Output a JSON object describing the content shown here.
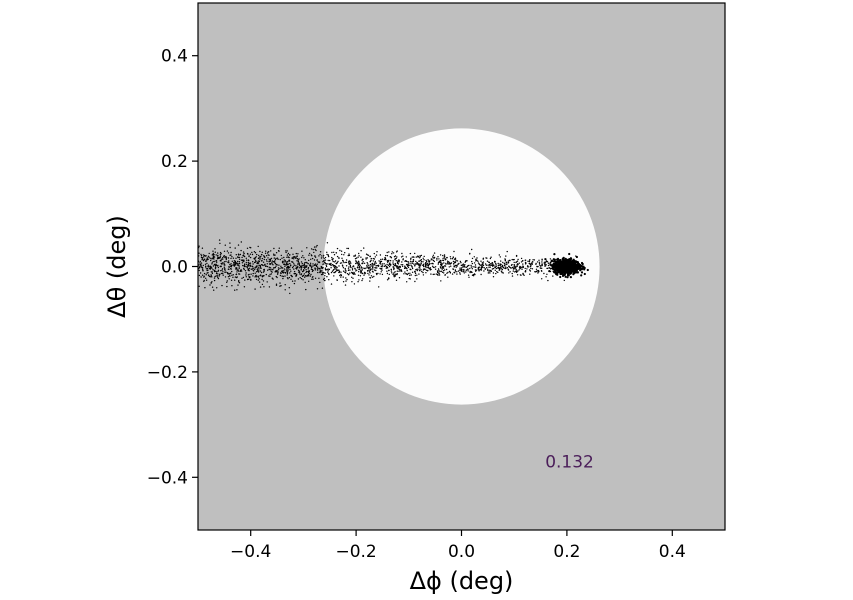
{
  "chart_data": {
    "type": "scatter",
    "title": "",
    "xlabel": "Δϕ (deg)",
    "ylabel": "Δθ (deg)",
    "xlim": [
      -0.5,
      0.5
    ],
    "ylim": [
      -0.5,
      0.5
    ],
    "x_ticks": [
      -0.4,
      -0.2,
      0.0,
      0.2,
      0.4
    ],
    "y_ticks": [
      -0.4,
      -0.2,
      0.0,
      0.2,
      0.4
    ],
    "x_tick_labels": [
      "−0.4",
      "−0.2",
      "0.0",
      "0.2",
      "0.4"
    ],
    "y_tick_labels": [
      "−0.4",
      "−0.2",
      "0.0",
      "0.2",
      "0.4"
    ],
    "grid": false,
    "legend": "none",
    "background_color": "#bfbfbf",
    "disk": {
      "center": [
        0.0,
        0.0
      ],
      "radius": 0.262,
      "color": "#fcfcfc"
    },
    "point_cloud": {
      "color": "#000000",
      "dense_core": {
        "center": [
          0.2,
          0.0
        ],
        "spread_x": 0.012,
        "spread_y": 0.012
      },
      "tail": {
        "x_range": [
          -0.5,
          0.22
        ],
        "y_spread_start": 0.03,
        "y_spread_end": 0.012
      }
    },
    "annotations": [
      {
        "text": "0.132",
        "x": 0.205,
        "y": -0.37
      }
    ]
  }
}
